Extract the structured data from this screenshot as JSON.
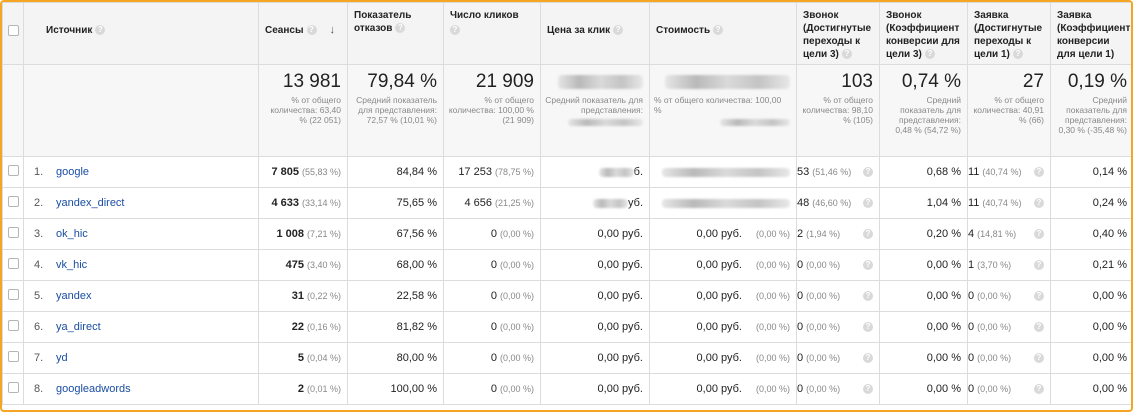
{
  "headers": {
    "source": "Источник",
    "sessions": "Сеансы",
    "bounce": "Показатель отказов",
    "clicks": "Число кликов",
    "cpc": "Цена за клик",
    "cost": "Стоимость",
    "call_goal": "Звонок (Достигнутые переходы к цели 3)",
    "call_conv": "Звонок (Коэффициент конверсии для цели 3)",
    "req_goal": "Заявка (Достигнутые переходы к цели 1)",
    "req_conv": "Заявка (Коэффициент конверсии для цели 1)",
    "help_glyph": "?",
    "sort_arrow": "↓"
  },
  "totals": {
    "sessions": {
      "big": "13 981",
      "small": "% от общего количества: 63,40 % (22 051)"
    },
    "bounce": {
      "big": "79,84 %",
      "small": "Средний показатель для представления: 72,57 % (10,01 %)"
    },
    "clicks": {
      "big": "21 909",
      "small": "% от общего количества: 100,00 % (21 909)"
    },
    "cpc": {
      "small": "Средний показатель для представления:"
    },
    "cost": {
      "small": "% от общего количества: 100,00 %"
    },
    "call_goal": {
      "big": "103",
      "small": "% от общего количества: 98,10 % (105)"
    },
    "call_conv": {
      "big": "0,74 %",
      "small": "Средний показатель для представления: 0,48 % (54,72 %)"
    },
    "req_goal": {
      "big": "27",
      "small": "% от общего количества: 40,91 % (66)"
    },
    "req_conv": {
      "big": "0,19 %",
      "small": "Средний показатель для представления: 0,30 % (-35,48 %)"
    }
  },
  "rows": [
    {
      "num": "1.",
      "source": "google",
      "sessions": "7 805",
      "sessions_pct": "(55,83 %)",
      "bounce": "84,84 %",
      "clicks": "17 253",
      "clicks_pct": "(78,75 %)",
      "cpc": "б.",
      "cost": "",
      "cost_pct": "",
      "call": "53",
      "call_pct": "(51,46 %)",
      "call_conv": "0,68 %",
      "req": "11",
      "req_pct": "(40,74 %)",
      "req_conv": "0,14 %"
    },
    {
      "num": "2.",
      "source": "yandex_direct",
      "sessions": "4 633",
      "sessions_pct": "(33,14 %)",
      "bounce": "75,65 %",
      "clicks": "4 656",
      "clicks_pct": "(21,25 %)",
      "cpc": "уб.",
      "cost": "",
      "cost_pct": "",
      "call": "48",
      "call_pct": "(46,60 %)",
      "call_conv": "1,04 %",
      "req": "11",
      "req_pct": "(40,74 %)",
      "req_conv": "0,24 %"
    },
    {
      "num": "3.",
      "source": "ok_hic",
      "sessions": "1 008",
      "sessions_pct": "(7,21 %)",
      "bounce": "67,56 %",
      "clicks": "0",
      "clicks_pct": "(0,00 %)",
      "cpc": "0,00 руб.",
      "cost": "0,00 руб.",
      "cost_pct": "(0,00 %)",
      "call": "2",
      "call_pct": "(1,94 %)",
      "call_conv": "0,20 %",
      "req": "4",
      "req_pct": "(14,81 %)",
      "req_conv": "0,40 %"
    },
    {
      "num": "4.",
      "source": "vk_hic",
      "sessions": "475",
      "sessions_pct": "(3,40 %)",
      "bounce": "68,00 %",
      "clicks": "0",
      "clicks_pct": "(0,00 %)",
      "cpc": "0,00 руб.",
      "cost": "0,00 руб.",
      "cost_pct": "(0,00 %)",
      "call": "0",
      "call_pct": "(0,00 %)",
      "call_conv": "0,00 %",
      "req": "1",
      "req_pct": "(3,70 %)",
      "req_conv": "0,21 %"
    },
    {
      "num": "5.",
      "source": "yandex",
      "sessions": "31",
      "sessions_pct": "(0,22 %)",
      "bounce": "22,58 %",
      "clicks": "0",
      "clicks_pct": "(0,00 %)",
      "cpc": "0,00 руб.",
      "cost": "0,00 руб.",
      "cost_pct": "(0,00 %)",
      "call": "0",
      "call_pct": "(0,00 %)",
      "call_conv": "0,00 %",
      "req": "0",
      "req_pct": "(0,00 %)",
      "req_conv": "0,00 %"
    },
    {
      "num": "6.",
      "source": "ya_direct",
      "sessions": "22",
      "sessions_pct": "(0,16 %)",
      "bounce": "81,82 %",
      "clicks": "0",
      "clicks_pct": "(0,00 %)",
      "cpc": "0,00 руб.",
      "cost": "0,00 руб.",
      "cost_pct": "(0,00 %)",
      "call": "0",
      "call_pct": "(0,00 %)",
      "call_conv": "0,00 %",
      "req": "0",
      "req_pct": "(0,00 %)",
      "req_conv": "0,00 %"
    },
    {
      "num": "7.",
      "source": "yd",
      "sessions": "5",
      "sessions_pct": "(0,04 %)",
      "bounce": "80,00 %",
      "clicks": "0",
      "clicks_pct": "(0,00 %)",
      "cpc": "0,00 руб.",
      "cost": "0,00 руб.",
      "cost_pct": "(0,00 %)",
      "call": "0",
      "call_pct": "(0,00 %)",
      "call_conv": "0,00 %",
      "req": "0",
      "req_pct": "(0,00 %)",
      "req_conv": "0,00 %"
    },
    {
      "num": "8.",
      "source": "googleadwords",
      "sessions": "2",
      "sessions_pct": "(0,01 %)",
      "bounce": "100,00 %",
      "clicks": "0",
      "clicks_pct": "(0,00 %)",
      "cpc": "0,00 руб.",
      "cost": "0,00 руб.",
      "cost_pct": "(0,00 %)",
      "call": "0",
      "call_pct": "(0,00 %)",
      "call_conv": "0,00 %",
      "req": "0",
      "req_pct": "(0,00 %)",
      "req_conv": "0,00 %"
    }
  ],
  "colors": {
    "border": "#f4a623",
    "link": "#1a4ea2",
    "muted": "#888888",
    "header_bg": "#f4f4f4"
  }
}
